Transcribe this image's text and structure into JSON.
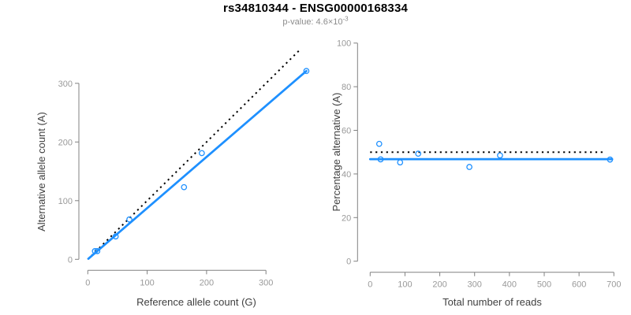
{
  "header": {
    "title": "rs34810344 - ENSG00000168334",
    "p_label": "p-value: 4.6×10",
    "p_exponent": "-3"
  },
  "colors": {
    "accent_blue": "#1E90FF",
    "dotted_line_black": "#000000",
    "tick_label_gray": "#999999",
    "axis_line_gray": "#808080",
    "axis_title_gray": "#404040",
    "subtitle_gray": "#8c8c8c"
  },
  "chart_data": [
    {
      "id": "allele-counts-scatter",
      "type": "scatter",
      "xlabel": "Reference allele count (G)",
      "ylabel": "Alternative allele count (A)",
      "xticks": [
        0,
        100,
        200,
        300
      ],
      "yticks": [
        0,
        100,
        200,
        300
      ],
      "xlim": [
        0,
        375
      ],
      "ylim": [
        0,
        365
      ],
      "points": [
        [
          12,
          14
        ],
        [
          16,
          14
        ],
        [
          47,
          39
        ],
        [
          70,
          68
        ],
        [
          162,
          123
        ],
        [
          192,
          181
        ],
        [
          368,
          321
        ]
      ],
      "identity_line": {
        "style": "dotted",
        "x1": 0,
        "y1": 0,
        "x2": 356,
        "y2": 356
      },
      "fit_line": {
        "style": "solid",
        "x1": 1,
        "y1": 1,
        "x2": 368,
        "y2": 321
      },
      "legend_position": "none",
      "grid": false
    },
    {
      "id": "percentage-vs-reads-scatter",
      "type": "scatter",
      "xlabel": "Total number of reads",
      "ylabel": "Percentage alternative (A)",
      "xticks": [
        0,
        100,
        200,
        300,
        400,
        500,
        600,
        700
      ],
      "yticks": [
        0,
        20,
        40,
        60,
        80,
        100
      ],
      "xlim": [
        0,
        700
      ],
      "ylim": [
        0,
        100
      ],
      "points": [
        [
          26,
          53.8
        ],
        [
          30,
          46.7
        ],
        [
          86,
          45.3
        ],
        [
          138,
          49.3
        ],
        [
          285,
          43.2
        ],
        [
          373,
          48.5
        ],
        [
          689,
          46.6
        ]
      ],
      "identity_line": {
        "style": "dotted",
        "x1": 0,
        "y1": 50,
        "x2": 677,
        "y2": 50
      },
      "fit_line": {
        "style": "solid",
        "x1": 0,
        "y1": 46.8,
        "x2": 695,
        "y2": 46.8
      },
      "legend_position": "none",
      "grid": false
    }
  ]
}
